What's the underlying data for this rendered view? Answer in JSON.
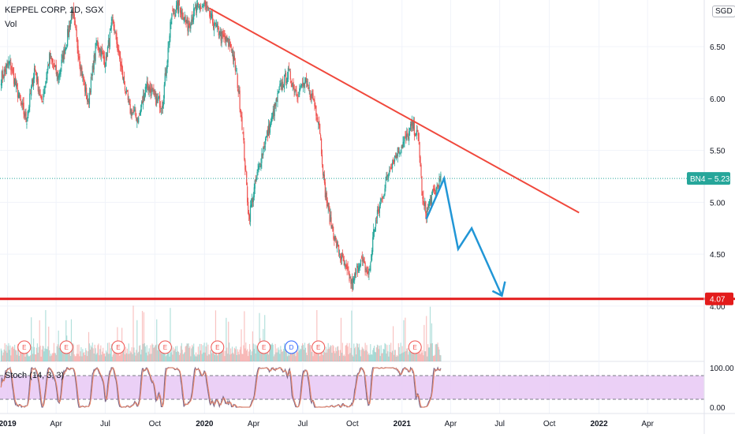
{
  "header": {
    "symbol_line": "KEPPEL CORP, 1D, SGX",
    "volume_label": "Vol",
    "currency": "SGD"
  },
  "indicator": {
    "label": "Stoch (14, 3, 3)"
  },
  "chart_data": {
    "type": "line",
    "title": "KEPPEL CORP, 1D, SGX",
    "y_ticks": [
      6.5,
      6.0,
      5.5,
      5.0,
      4.5,
      4.0
    ],
    "y_tick_labels": [
      "6.50",
      "6.00",
      "5.50",
      "5.00",
      "4.50",
      "4.00"
    ],
    "ylim": [
      3.87,
      6.95
    ],
    "x_ticks": [
      {
        "date": "2019-01-01",
        "label": "2019",
        "bold": true
      },
      {
        "date": "2019-04-01",
        "label": "Apr",
        "bold": false
      },
      {
        "date": "2019-07-01",
        "label": "Jul",
        "bold": false
      },
      {
        "date": "2019-10-01",
        "label": "Oct",
        "bold": false
      },
      {
        "date": "2020-01-01",
        "label": "2020",
        "bold": true
      },
      {
        "date": "2020-04-01",
        "label": "Apr",
        "bold": false
      },
      {
        "date": "2020-07-01",
        "label": "Jul",
        "bold": false
      },
      {
        "date": "2020-10-01",
        "label": "Oct",
        "bold": false
      },
      {
        "date": "2021-01-01",
        "label": "2021",
        "bold": true
      },
      {
        "date": "2021-04-01",
        "label": "Apr",
        "bold": false
      },
      {
        "date": "2021-07-01",
        "label": "Jul",
        "bold": false
      },
      {
        "date": "2021-10-01",
        "label": "Oct",
        "bold": false
      },
      {
        "date": "2022-01-01",
        "label": "2022",
        "bold": true
      },
      {
        "date": "2022-04-01",
        "label": "Apr",
        "bold": false
      }
    ],
    "xlim": [
      "2018-12-18",
      "2022-07-15"
    ],
    "price_series": [
      {
        "date": "2018-12-20",
        "value": 6.2
      },
      {
        "date": "2019-01-05",
        "value": 6.35
      },
      {
        "date": "2019-01-20",
        "value": 6.05
      },
      {
        "date": "2019-02-05",
        "value": 5.78
      },
      {
        "date": "2019-02-20",
        "value": 6.3
      },
      {
        "date": "2019-03-05",
        "value": 5.95
      },
      {
        "date": "2019-03-20",
        "value": 6.4
      },
      {
        "date": "2019-04-05",
        "value": 6.2
      },
      {
        "date": "2019-04-20",
        "value": 6.55
      },
      {
        "date": "2019-05-01",
        "value": 6.85
      },
      {
        "date": "2019-05-15",
        "value": 6.35
      },
      {
        "date": "2019-05-30",
        "value": 5.95
      },
      {
        "date": "2019-06-15",
        "value": 6.55
      },
      {
        "date": "2019-07-01",
        "value": 6.35
      },
      {
        "date": "2019-07-15",
        "value": 6.75
      },
      {
        "date": "2019-08-01",
        "value": 6.25
      },
      {
        "date": "2019-08-15",
        "value": 5.9
      },
      {
        "date": "2019-09-01",
        "value": 5.8
      },
      {
        "date": "2019-09-15",
        "value": 6.15
      },
      {
        "date": "2019-10-01",
        "value": 6.0
      },
      {
        "date": "2019-10-15",
        "value": 5.95
      },
      {
        "date": "2019-11-01",
        "value": 6.8
      },
      {
        "date": "2019-11-15",
        "value": 6.9
      },
      {
        "date": "2019-12-01",
        "value": 6.7
      },
      {
        "date": "2019-12-15",
        "value": 6.85
      },
      {
        "date": "2020-01-01",
        "value": 6.9
      },
      {
        "date": "2020-01-15",
        "value": 6.75
      },
      {
        "date": "2020-02-01",
        "value": 6.6
      },
      {
        "date": "2020-02-20",
        "value": 6.5
      },
      {
        "date": "2020-03-01",
        "value": 6.2
      },
      {
        "date": "2020-03-10",
        "value": 5.8
      },
      {
        "date": "2020-03-23",
        "value": 4.85
      },
      {
        "date": "2020-04-05",
        "value": 5.2
      },
      {
        "date": "2020-04-20",
        "value": 5.55
      },
      {
        "date": "2020-05-05",
        "value": 5.8
      },
      {
        "date": "2020-05-20",
        "value": 6.1
      },
      {
        "date": "2020-06-05",
        "value": 6.25
      },
      {
        "date": "2020-06-20",
        "value": 6.05
      },
      {
        "date": "2020-07-05",
        "value": 6.15
      },
      {
        "date": "2020-07-20",
        "value": 6.0
      },
      {
        "date": "2020-08-01",
        "value": 5.75
      },
      {
        "date": "2020-08-10",
        "value": 5.15
      },
      {
        "date": "2020-08-20",
        "value": 4.85
      },
      {
        "date": "2020-09-01",
        "value": 4.6
      },
      {
        "date": "2020-09-15",
        "value": 4.4
      },
      {
        "date": "2020-10-01",
        "value": 4.2
      },
      {
        "date": "2020-10-15",
        "value": 4.45
      },
      {
        "date": "2020-11-01",
        "value": 4.3
      },
      {
        "date": "2020-11-10",
        "value": 4.75
      },
      {
        "date": "2020-11-25",
        "value": 5.05
      },
      {
        "date": "2020-12-10",
        "value": 5.35
      },
      {
        "date": "2020-12-25",
        "value": 5.5
      },
      {
        "date": "2021-01-10",
        "value": 5.62
      },
      {
        "date": "2021-01-20",
        "value": 5.75
      },
      {
        "date": "2021-02-01",
        "value": 5.6
      },
      {
        "date": "2021-02-08",
        "value": 5.0
      },
      {
        "date": "2021-02-15",
        "value": 4.9
      },
      {
        "date": "2021-02-25",
        "value": 5.05
      },
      {
        "date": "2021-03-05",
        "value": 5.12
      },
      {
        "date": "2021-03-15",
        "value": 5.23
      }
    ],
    "last_price": {
      "label": "BN4",
      "value": 5.23,
      "value_label": "5.23"
    },
    "support_level": {
      "value": 4.07,
      "label": "4.07"
    },
    "trendline": [
      {
        "date": "2020-01-10",
        "value": 6.87
      },
      {
        "date": "2021-11-25",
        "value": 4.9
      }
    ],
    "projection_path": [
      {
        "date": "2021-02-15",
        "value": 4.84
      },
      {
        "date": "2021-03-20",
        "value": 5.23
      },
      {
        "date": "2021-04-15",
        "value": 4.55
      },
      {
        "date": "2021-05-10",
        "value": 4.75
      },
      {
        "date": "2021-07-05",
        "value": 4.1
      }
    ],
    "event_markers": [
      {
        "date": "2019-02-01",
        "letter": "E"
      },
      {
        "date": "2019-04-20",
        "letter": "E"
      },
      {
        "date": "2019-07-25",
        "letter": "E"
      },
      {
        "date": "2019-10-20",
        "letter": "E"
      },
      {
        "date": "2020-01-25",
        "letter": "E"
      },
      {
        "date": "2020-04-20",
        "letter": "E"
      },
      {
        "date": "2020-06-10",
        "letter": "D"
      },
      {
        "date": "2020-07-30",
        "letter": "E"
      },
      {
        "date": "2021-01-25",
        "letter": "E"
      }
    ],
    "stoch_levels": {
      "upper": 80,
      "lower": 20,
      "range": [
        0,
        100
      ]
    },
    "stoch_tick_labels": [
      "100.00",
      "0.00"
    ],
    "colors": {
      "trendline": "#f0483c",
      "projection": "#2196d6",
      "support": "#e31b1b",
      "last_price": "#26a69a",
      "up": "#26a69a",
      "down": "#ef5350",
      "stoch_fill": "#e8c8f5",
      "stoch_line": "#7f6a8a"
    }
  }
}
